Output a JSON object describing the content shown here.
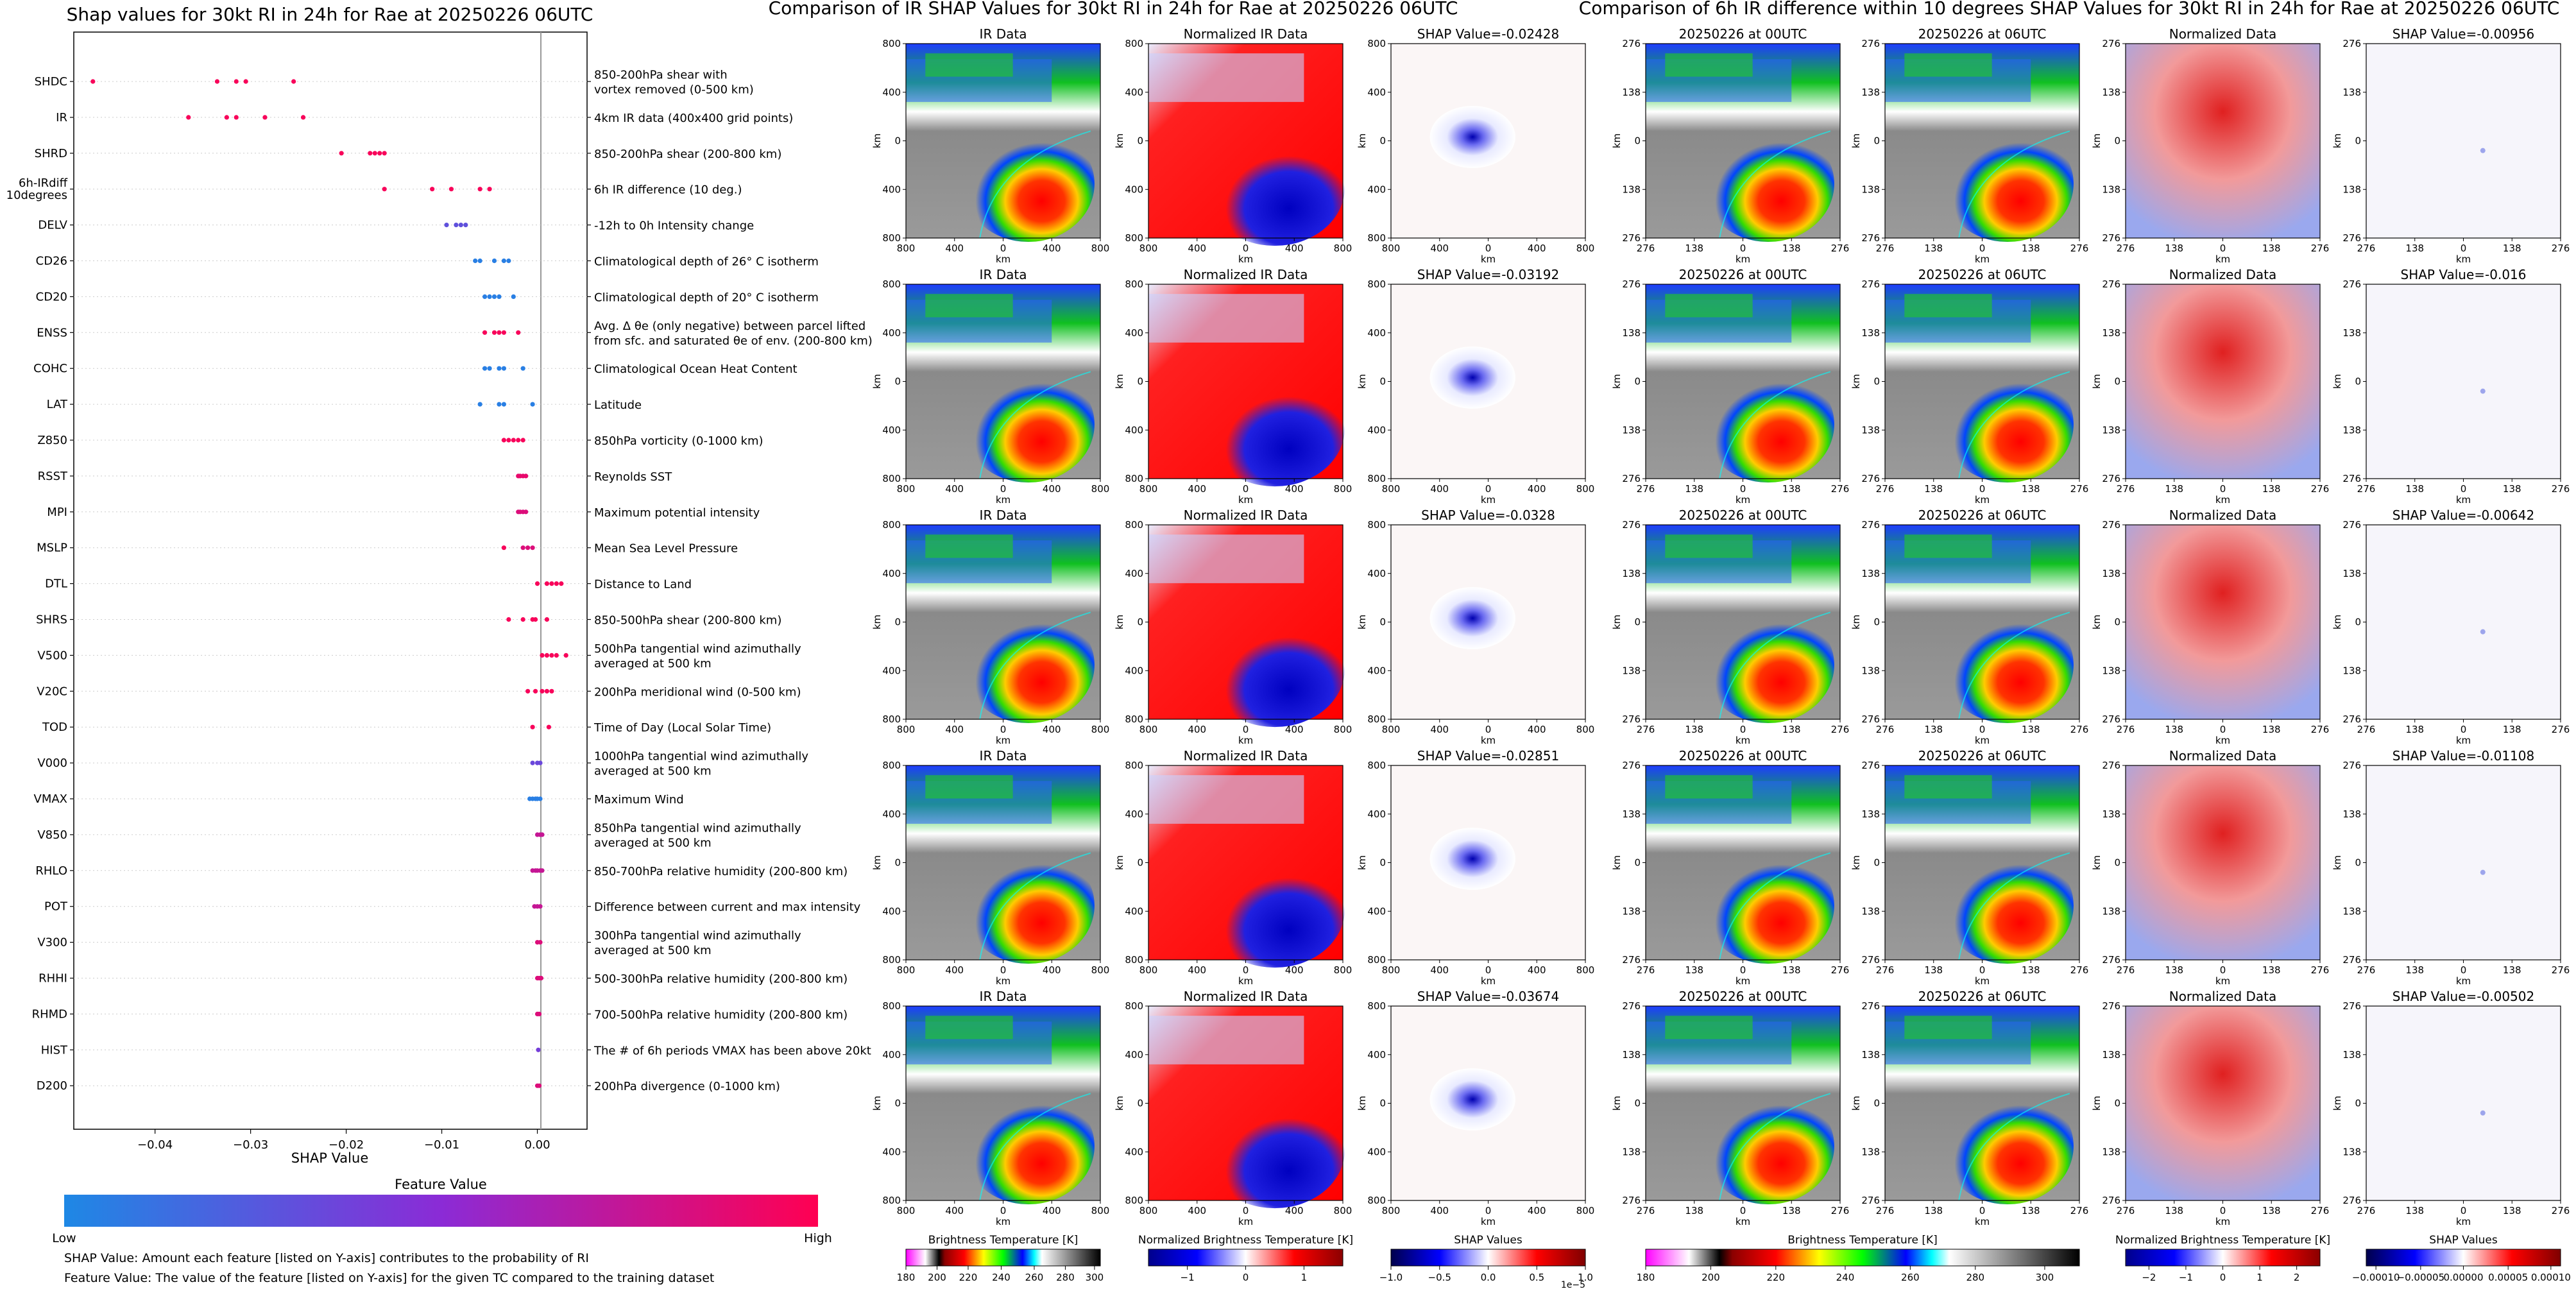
{
  "colors": {
    "feature_low": "#1e88e5",
    "feature_high": "#ff0052",
    "ir_ramp": [
      "#ff00ff",
      "#ffffff",
      "#000000",
      "#ff0000",
      "#ffff00",
      "#00ff00",
      "#0000ff",
      "#00ffff",
      "#ffffff",
      "#000000"
    ],
    "bwr_ramp": [
      "#00008b",
      "#0000ff",
      "#ffffff",
      "#ff0000",
      "#8b0000"
    ],
    "seismic_ramp": [
      "#00004c",
      "#0000ff",
      "#ffffff",
      "#ff0000",
      "#7f0000"
    ]
  },
  "summary": {
    "title": "Shap values for 30kt RI in 24h for Rae at 20250226 06UTC",
    "xlabel": "SHAP Value",
    "xticks": [
      "−0.04",
      "−0.03",
      "−0.02",
      "−0.01",
      "0.00"
    ],
    "colorbar_title": "Feature Value",
    "colorbar_low": "Low",
    "colorbar_high": "High",
    "note1": "SHAP Value: Amount each feature [listed on Y-axis] contributes to the probability of RI",
    "note2": "Feature Value: The value of the feature [listed on Y-axis] for the given TC compared to the training dataset",
    "features": [
      {
        "name": "SHDC",
        "desc": [
          "850-200hPa shear with",
          "vortex removed (0-500 km)"
        ]
      },
      {
        "name": "IR",
        "desc": [
          "4km IR data (400x400 grid points)"
        ]
      },
      {
        "name": "SHRD",
        "desc": [
          "850-200hPa shear (200-800 km)"
        ]
      },
      {
        "name": "6h-IRdiff 10degrees",
        "name_lines": [
          "6h-IRdiff",
          "10degrees"
        ],
        "desc": [
          "6h IR difference (10 deg.)"
        ]
      },
      {
        "name": "DELV",
        "desc": [
          "-12h to 0h Intensity change"
        ]
      },
      {
        "name": "CD26",
        "desc": [
          "Climatological depth of 26° C isotherm"
        ]
      },
      {
        "name": "CD20",
        "desc": [
          "Climatological depth of 20° C isotherm"
        ]
      },
      {
        "name": "ENSS",
        "desc": [
          "Avg. Δ θe (only negative) between parcel lifted",
          "from sfc. and saturated θe of env. (200-800 km)"
        ]
      },
      {
        "name": "COHC",
        "desc": [
          "Climatological Ocean Heat Content"
        ]
      },
      {
        "name": "LAT",
        "desc": [
          "Latitude"
        ]
      },
      {
        "name": "Z850",
        "desc": [
          "850hPa vorticity (0-1000 km)"
        ]
      },
      {
        "name": "RSST",
        "desc": [
          "Reynolds SST"
        ]
      },
      {
        "name": "MPI",
        "desc": [
          "Maximum potential intensity"
        ]
      },
      {
        "name": "MSLP",
        "desc": [
          "Mean Sea Level Pressure"
        ]
      },
      {
        "name": "DTL",
        "desc": [
          "Distance to Land"
        ]
      },
      {
        "name": "SHRS",
        "desc": [
          "850-500hPa shear (200-800 km)"
        ]
      },
      {
        "name": "V500",
        "desc": [
          "500hPa tangential wind azimuthally",
          "averaged at 500 km"
        ]
      },
      {
        "name": "V20C",
        "desc": [
          "200hPa meridional wind (0-500 km)"
        ]
      },
      {
        "name": "TOD",
        "desc": [
          "Time of Day (Local Solar Time)"
        ]
      },
      {
        "name": "V000",
        "desc": [
          "1000hPa tangential wind azimuthally",
          "averaged at 500 km"
        ]
      },
      {
        "name": "VMAX",
        "desc": [
          "Maximum Wind"
        ]
      },
      {
        "name": "V850",
        "desc": [
          "850hPa tangential wind azimuthally",
          "averaged at 500 km"
        ]
      },
      {
        "name": "RHLO",
        "desc": [
          "850-700hPa relative humidity (200-800 km)"
        ]
      },
      {
        "name": "POT",
        "desc": [
          "Difference between current and max intensity"
        ]
      },
      {
        "name": "V300",
        "desc": [
          "300hPa tangential wind azimuthally",
          "averaged at 500 km"
        ]
      },
      {
        "name": "RHHI",
        "desc": [
          "500-300hPa relative humidity (200-800 km)"
        ]
      },
      {
        "name": "RHMD",
        "desc": [
          "700-500hPa relative humidity (200-800 km)"
        ]
      },
      {
        "name": "HIST",
        "desc": [
          "The # of 6h periods VMAX has been above 20kt"
        ]
      },
      {
        "name": "D200",
        "desc": [
          "200hPa divergence (0-1000 km)"
        ]
      }
    ]
  },
  "chart_data": [
    {
      "type": "scatter",
      "title": "Shap values for 30kt RI in 24h for Rae at 20250226 06UTC",
      "xlabel": "SHAP Value",
      "xlim": [
        -0.0485,
        0.0052
      ],
      "legend": "bottom colorbar (Feature Value, Low to High)",
      "grid": false,
      "series": [
        {
          "feature": "SHDC",
          "x": [
            -0.0465,
            -0.0335,
            -0.0315,
            -0.0305,
            -0.0255
          ],
          "level": [
            0.97,
            0.97,
            0.97,
            0.97,
            0.97
          ]
        },
        {
          "feature": "IR",
          "x": [
            -0.0365,
            -0.0325,
            -0.0315,
            -0.0285,
            -0.0245
          ],
          "level": [
            0.97,
            0.97,
            0.97,
            0.97,
            0.97
          ]
        },
        {
          "feature": "SHRD",
          "x": [
            -0.0205,
            -0.0175,
            -0.017,
            -0.0165,
            -0.016
          ],
          "level": [
            0.97,
            0.97,
            0.97,
            0.97,
            0.97
          ]
        },
        {
          "feature": "6h-IRdiff 10degrees",
          "x": [
            -0.016,
            -0.011,
            -0.009,
            -0.006,
            -0.005
          ],
          "level": [
            0.97,
            0.97,
            0.97,
            0.97,
            0.97
          ]
        },
        {
          "feature": "DELV",
          "x": [
            -0.0095,
            -0.0085,
            -0.008,
            -0.0075
          ],
          "level": [
            0.3,
            0.3,
            0.3,
            0.3
          ]
        },
        {
          "feature": "CD26",
          "x": [
            -0.0065,
            -0.006,
            -0.0045,
            -0.0035,
            -0.003
          ],
          "level": [
            0.05,
            0.05,
            0.05,
            0.05,
            0.05
          ]
        },
        {
          "feature": "CD20",
          "x": [
            -0.0055,
            -0.005,
            -0.0045,
            -0.004,
            -0.0025
          ],
          "level": [
            0.05,
            0.05,
            0.05,
            0.05,
            0.05
          ]
        },
        {
          "feature": "ENSS",
          "x": [
            -0.0055,
            -0.0045,
            -0.004,
            -0.0035,
            -0.002
          ],
          "level": [
            0.97,
            0.97,
            0.97,
            0.97,
            0.97
          ]
        },
        {
          "feature": "COHC",
          "x": [
            -0.0055,
            -0.005,
            -0.004,
            -0.0035,
            -0.0015
          ],
          "level": [
            0.05,
            0.05,
            0.05,
            0.05,
            0.05
          ]
        },
        {
          "feature": "LAT",
          "x": [
            -0.006,
            -0.004,
            -0.0035,
            -0.0005
          ],
          "level": [
            0.05,
            0.05,
            0.05,
            0.05
          ]
        },
        {
          "feature": "Z850",
          "x": [
            -0.0035,
            -0.003,
            -0.0025,
            -0.002,
            -0.0015
          ],
          "level": [
            0.97,
            0.97,
            0.97,
            0.97,
            0.97
          ]
        },
        {
          "feature": "RSST",
          "x": [
            -0.002,
            -0.0018,
            -0.0015,
            -0.0012
          ],
          "level": [
            0.9,
            0.9,
            0.9,
            0.9
          ]
        },
        {
          "feature": "MPI",
          "x": [
            -0.002,
            -0.0018,
            -0.0015,
            -0.0012
          ],
          "level": [
            0.85,
            0.85,
            0.85,
            0.85
          ]
        },
        {
          "feature": "MSLP",
          "x": [
            -0.0035,
            -0.0015,
            -0.001,
            -0.0005
          ],
          "level": [
            0.97,
            0.85,
            0.85,
            0.85
          ]
        },
        {
          "feature": "DTL",
          "x": [
            0.0,
            0.001,
            0.0015,
            0.002,
            0.0025
          ],
          "level": [
            0.97,
            0.97,
            0.97,
            0.97,
            0.97
          ]
        },
        {
          "feature": "SHRS",
          "x": [
            -0.003,
            -0.0015,
            -0.0005,
            -0.0002,
            0.001
          ],
          "level": [
            0.97,
            0.97,
            0.97,
            0.97,
            0.97
          ]
        },
        {
          "feature": "V500",
          "x": [
            0.0005,
            0.001,
            0.0015,
            0.002,
            0.003
          ],
          "level": [
            0.97,
            0.97,
            0.97,
            0.97,
            0.97
          ]
        },
        {
          "feature": "V20C",
          "x": [
            -0.001,
            -0.0002,
            0.0005,
            0.001,
            0.0015
          ],
          "level": [
            0.97,
            0.97,
            0.97,
            0.97,
            0.97
          ]
        },
        {
          "feature": "TOD",
          "x": [
            -0.0005,
            0.0012
          ],
          "level": [
            0.97,
            0.97
          ]
        },
        {
          "feature": "V000",
          "x": [
            -0.0005,
            0.0,
            0.0003
          ],
          "level": [
            0.35,
            0.35,
            0.35
          ]
        },
        {
          "feature": "VMAX",
          "x": [
            -0.0008,
            -0.0005,
            -0.0002,
            0.0,
            0.0003
          ],
          "level": [
            0.05,
            0.05,
            0.05,
            0.05,
            0.05
          ]
        },
        {
          "feature": "V850",
          "x": [
            0.0,
            0.0003,
            0.0005
          ],
          "level": [
            0.75,
            0.75,
            0.75
          ]
        },
        {
          "feature": "RHLO",
          "x": [
            -0.0005,
            -0.0002,
            0.0,
            0.0003,
            0.0005
          ],
          "level": [
            0.75,
            0.75,
            0.75,
            0.75,
            0.75
          ]
        },
        {
          "feature": "POT",
          "x": [
            -0.0003,
            0.0,
            0.0003
          ],
          "level": [
            0.75,
            0.75,
            0.75
          ]
        },
        {
          "feature": "V300",
          "x": [
            0.0,
            0.0003
          ],
          "level": [
            0.85,
            0.85
          ]
        },
        {
          "feature": "RHHI",
          "x": [
            0.0,
            0.0002,
            0.0004
          ],
          "level": [
            0.85,
            0.85,
            0.85
          ]
        },
        {
          "feature": "RHMD",
          "x": [
            0.0,
            0.0002
          ],
          "level": [
            0.85,
            0.85
          ]
        },
        {
          "feature": "HIST",
          "x": [
            0.0001
          ],
          "level": [
            0.4
          ]
        },
        {
          "feature": "D200",
          "x": [
            0.0,
            0.0002
          ],
          "level": [
            0.85,
            0.85
          ]
        }
      ]
    },
    {
      "type": "heatmap",
      "title": "Comparison of IR SHAP Values for 30kt RI in 24h for Rae at 20250226 06UTC",
      "columns": [
        "IR Data",
        "Normalized IR Data",
        "SHAP Value"
      ],
      "shap_values": [
        -0.02428,
        -0.03192,
        -0.0328,
        -0.02851,
        -0.03674
      ],
      "xlabel": "km",
      "ylabel": "km",
      "ticks": [
        "800",
        "400",
        "0",
        "400",
        "800"
      ],
      "colorbars": [
        {
          "label": "Brightness Temperature [K]",
          "ticks": [
            "180",
            "200",
            "220",
            "240",
            "260",
            "280",
            "300"
          ]
        },
        {
          "label": "Normalized Brightness Temperature [K]",
          "ticks": [
            "−1",
            "0",
            "1"
          ]
        },
        {
          "label": "SHAP Values",
          "ticks": [
            "−1.0",
            "−0.5",
            "0.0",
            "0.5",
            "1.0"
          ],
          "scale": "1e−5"
        }
      ]
    },
    {
      "type": "heatmap",
      "title": "Comparison of 6h IR difference within 10 degrees SHAP Values for 30kt RI in 24h for Rae at 20250226 06UTC",
      "columns": [
        "20250226 at 00UTC",
        "20250226 at 06UTC",
        "Normalized Data",
        "SHAP Value"
      ],
      "shap_values": [
        -0.00956,
        -0.016,
        -0.00642,
        -0.01108,
        -0.00502
      ],
      "xlabel": "km",
      "ylabel": "km",
      "ticks": [
        "276",
        "138",
        "0",
        "138",
        "276"
      ],
      "colorbars": [
        {
          "label": "Brightness Temperature [K]",
          "ticks": [
            "180",
            "200",
            "220",
            "240",
            "260",
            "280",
            "300"
          ]
        },
        {
          "label": "Normalized Brightness Temperature [K]",
          "ticks": [
            "−2",
            "−1",
            "0",
            "1",
            "2"
          ]
        },
        {
          "label": "SHAP Values",
          "ticks": [
            "−0.00010",
            "−0.00005",
            "0.00000",
            "0.00005",
            "0.00010"
          ]
        }
      ]
    }
  ]
}
